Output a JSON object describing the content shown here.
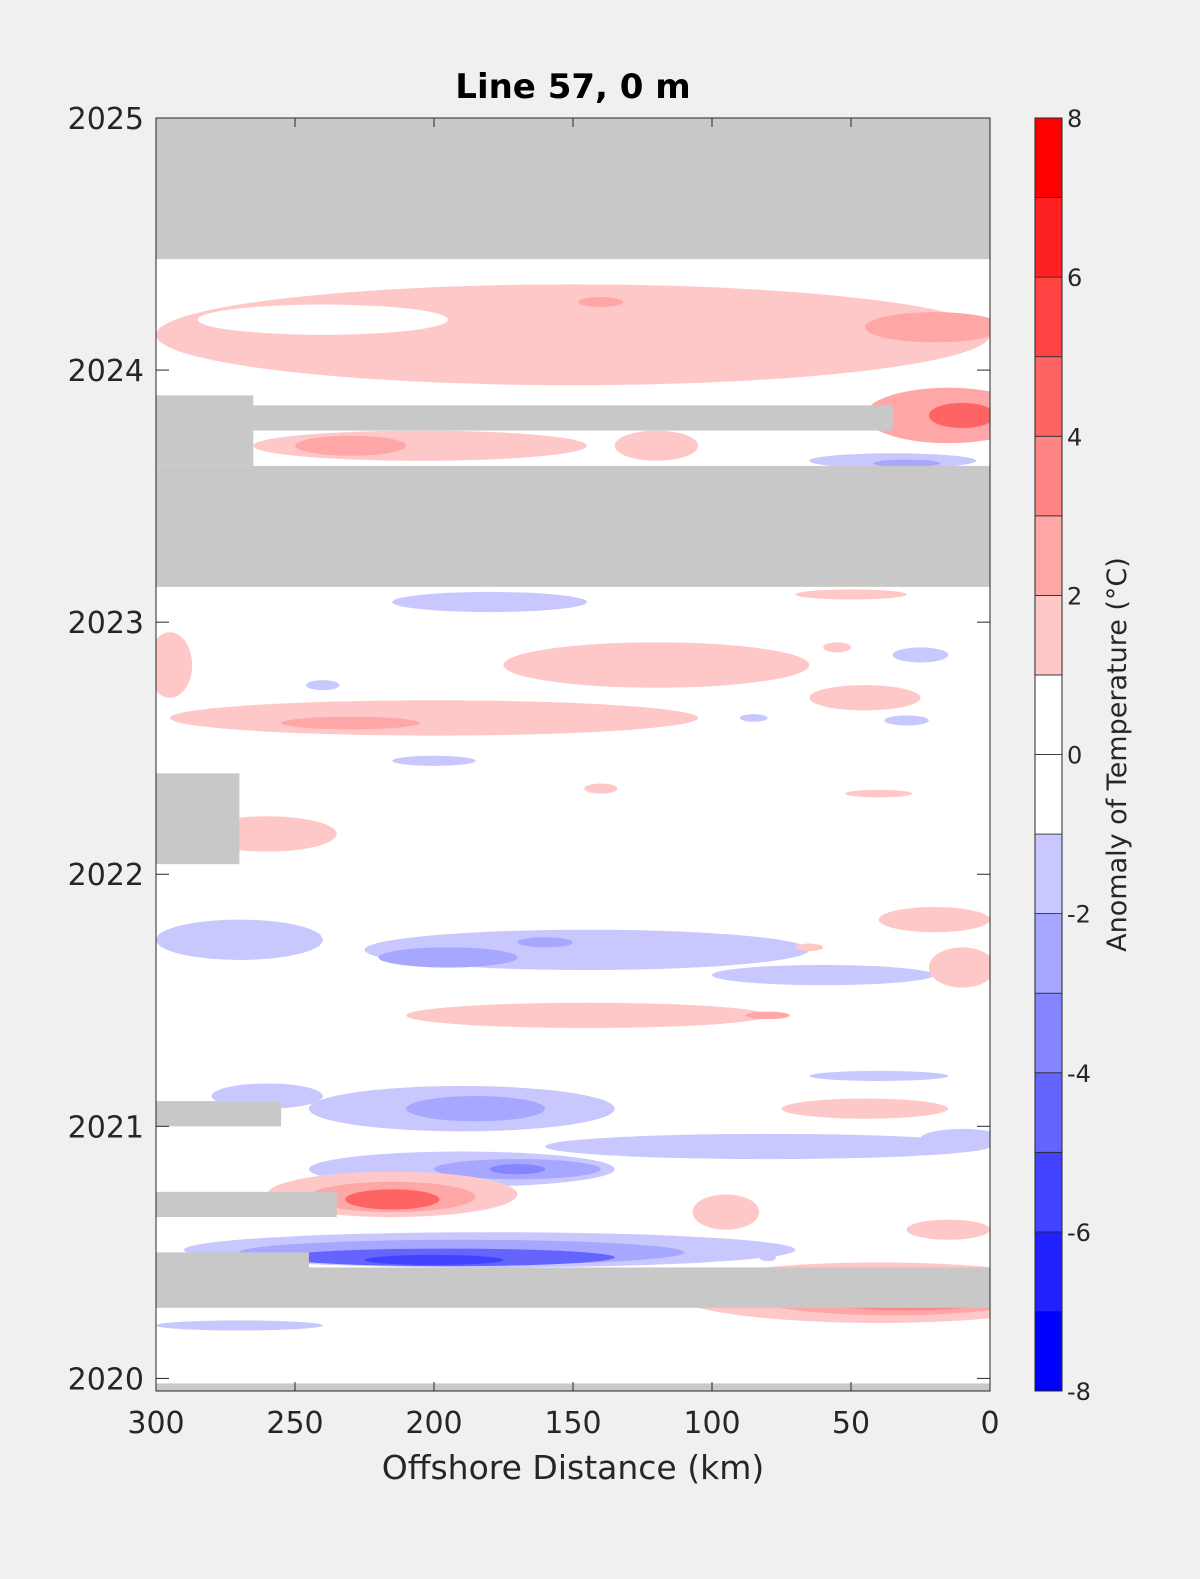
{
  "chart_data": {
    "type": "heatmap",
    "title": "Line 57, 0 m",
    "xlabel": "Offshore Distance (km)",
    "ylabel": "",
    "xlim": [
      300,
      0
    ],
    "ylim": [
      2019.95,
      2025
    ],
    "x_axis_reversed": true,
    "x_ticks": [
      300,
      250,
      200,
      150,
      100,
      50,
      0
    ],
    "y_ticks": [
      2020,
      2021,
      2022,
      2023,
      2024,
      2025
    ],
    "grid": false,
    "colorbar": {
      "label": "Anomaly of Temperature (°C)",
      "range": [
        -8,
        8
      ],
      "step": 1,
      "tick_values": [
        -8,
        -6,
        -4,
        -2,
        0,
        2,
        4,
        6,
        8
      ],
      "tick_labels": [
        "-8",
        "-6",
        "-4",
        "-2",
        "0",
        "2",
        "4",
        "6",
        "8"
      ],
      "negative_color": "#0000ff",
      "positive_color": "#ff0000",
      "neutral_color": "#ffffff"
    },
    "missing_data_color": "#c8c8c8",
    "missing_data": [
      {
        "x": [
          300,
          0
        ],
        "y": [
          2024.44,
          2025.0
        ]
      },
      {
        "x": [
          300,
          0
        ],
        "y": [
          2023.14,
          2023.62
        ]
      },
      {
        "x": [
          300,
          265
        ],
        "y": [
          2023.62,
          2023.9
        ]
      },
      {
        "x": [
          265,
          35
        ],
        "y": [
          2023.76,
          2023.86
        ]
      },
      {
        "x": [
          300,
          0
        ],
        "y": [
          2020.28,
          2020.44
        ]
      },
      {
        "x": [
          300,
          245
        ],
        "y": [
          2020.44,
          2020.5
        ]
      },
      {
        "x": [
          300,
          270
        ],
        "y": [
          2022.04,
          2022.4
        ]
      },
      {
        "x": [
          300,
          255
        ],
        "y": [
          2021.0,
          2021.1
        ]
      },
      {
        "x": [
          300,
          235
        ],
        "y": [
          2020.64,
          2020.74
        ]
      },
      {
        "x": [
          300,
          0
        ],
        "y": [
          2019.95,
          2019.98
        ]
      }
    ],
    "anomaly_regions": [
      {
        "x_center": 150,
        "y_center": 2024.14,
        "x_halfwidth": 150,
        "y_halfwidth": 0.2,
        "value": 1.2
      },
      {
        "x_center": 240,
        "y_center": 2024.2,
        "x_halfwidth": 45,
        "y_halfwidth": 0.06,
        "value": 0
      },
      {
        "x_center": 20,
        "y_center": 2024.17,
        "x_halfwidth": 25,
        "y_halfwidth": 0.06,
        "value": 2.5
      },
      {
        "x_center": 140,
        "y_center": 2024.27,
        "x_halfwidth": 8,
        "y_halfwidth": 0.02,
        "value": 2.5
      },
      {
        "x_center": 15,
        "y_center": 2023.82,
        "x_halfwidth": 30,
        "y_halfwidth": 0.11,
        "value": 2.5
      },
      {
        "x_center": 10,
        "y_center": 2023.82,
        "x_halfwidth": 12,
        "y_halfwidth": 0.05,
        "value": 4.5
      },
      {
        "x_center": 205,
        "y_center": 2023.7,
        "x_halfwidth": 60,
        "y_halfwidth": 0.06,
        "value": 1.2
      },
      {
        "x_center": 230,
        "y_center": 2023.7,
        "x_halfwidth": 20,
        "y_halfwidth": 0.04,
        "value": 2.5
      },
      {
        "x_center": 120,
        "y_center": 2023.7,
        "x_halfwidth": 15,
        "y_halfwidth": 0.06,
        "value": 1.2
      },
      {
        "x_center": 35,
        "y_center": 2023.64,
        "x_halfwidth": 30,
        "y_halfwidth": 0.03,
        "value": -1.2
      },
      {
        "x_center": 30,
        "y_center": 2023.63,
        "x_halfwidth": 12,
        "y_halfwidth": 0.015,
        "value": -2.5
      },
      {
        "x_center": 180,
        "y_center": 2023.08,
        "x_halfwidth": 35,
        "y_halfwidth": 0.04,
        "value": -1.2
      },
      {
        "x_center": 50,
        "y_center": 2023.11,
        "x_halfwidth": 20,
        "y_halfwidth": 0.02,
        "value": 1.2
      },
      {
        "x_center": 200,
        "y_center": 2022.62,
        "x_halfwidth": 95,
        "y_halfwidth": 0.07,
        "value": 1.2
      },
      {
        "x_center": 120,
        "y_center": 2022.83,
        "x_halfwidth": 55,
        "y_halfwidth": 0.09,
        "value": 1.2
      },
      {
        "x_center": 295,
        "y_center": 2022.83,
        "x_halfwidth": 8,
        "y_halfwidth": 0.13,
        "value": 1.2
      },
      {
        "x_center": 230,
        "y_center": 2022.6,
        "x_halfwidth": 25,
        "y_halfwidth": 0.025,
        "value": 2.5
      },
      {
        "x_center": 45,
        "y_center": 2022.7,
        "x_halfwidth": 20,
        "y_halfwidth": 0.05,
        "value": 1.2
      },
      {
        "x_center": 25,
        "y_center": 2022.87,
        "x_halfwidth": 10,
        "y_halfwidth": 0.03,
        "value": -1.2
      },
      {
        "x_center": 30,
        "y_center": 2022.61,
        "x_halfwidth": 8,
        "y_halfwidth": 0.02,
        "value": -1.2
      },
      {
        "x_center": 85,
        "y_center": 2022.62,
        "x_halfwidth": 5,
        "y_halfwidth": 0.015,
        "value": -1.2
      },
      {
        "x_center": 240,
        "y_center": 2022.75,
        "x_halfwidth": 6,
        "y_halfwidth": 0.02,
        "value": -1.2
      },
      {
        "x_center": 200,
        "y_center": 2022.45,
        "x_halfwidth": 15,
        "y_halfwidth": 0.02,
        "value": -1.2
      },
      {
        "x_center": 55,
        "y_center": 2022.9,
        "x_halfwidth": 5,
        "y_halfwidth": 0.02,
        "value": 1.2
      },
      {
        "x_center": 140,
        "y_center": 2022.34,
        "x_halfwidth": 6,
        "y_halfwidth": 0.02,
        "value": 1.2
      },
      {
        "x_center": 260,
        "y_center": 2022.16,
        "x_halfwidth": 25,
        "y_halfwidth": 0.07,
        "value": 1.2
      },
      {
        "x_center": 40,
        "y_center": 2022.32,
        "x_halfwidth": 12,
        "y_halfwidth": 0.015,
        "value": 1.2
      },
      {
        "x_center": 270,
        "y_center": 2021.74,
        "x_halfwidth": 30,
        "y_halfwidth": 0.08,
        "value": -1.2
      },
      {
        "x_center": 145,
        "y_center": 2021.7,
        "x_halfwidth": 80,
        "y_halfwidth": 0.08,
        "value": -1.2
      },
      {
        "x_center": 60,
        "y_center": 2021.6,
        "x_halfwidth": 40,
        "y_halfwidth": 0.04,
        "value": -1.2
      },
      {
        "x_center": 195,
        "y_center": 2021.67,
        "x_halfwidth": 25,
        "y_halfwidth": 0.04,
        "value": -2.5
      },
      {
        "x_center": 160,
        "y_center": 2021.73,
        "x_halfwidth": 10,
        "y_halfwidth": 0.02,
        "value": -2.5
      },
      {
        "x_center": 20,
        "y_center": 2021.82,
        "x_halfwidth": 20,
        "y_halfwidth": 0.05,
        "value": 1.2
      },
      {
        "x_center": 10,
        "y_center": 2021.63,
        "x_halfwidth": 12,
        "y_halfwidth": 0.08,
        "value": 1.2
      },
      {
        "x_center": 145,
        "y_center": 2021.44,
        "x_halfwidth": 65,
        "y_halfwidth": 0.05,
        "value": 1.2
      },
      {
        "x_center": 80,
        "y_center": 2021.44,
        "x_halfwidth": 8,
        "y_halfwidth": 0.015,
        "value": 2.5
      },
      {
        "x_center": 65,
        "y_center": 2021.71,
        "x_halfwidth": 5,
        "y_halfwidth": 0.015,
        "value": 1.2
      },
      {
        "x_center": 260,
        "y_center": 2021.12,
        "x_halfwidth": 20,
        "y_halfwidth": 0.05,
        "value": -1.2
      },
      {
        "x_center": 190,
        "y_center": 2021.07,
        "x_halfwidth": 55,
        "y_halfwidth": 0.09,
        "value": -1.2
      },
      {
        "x_center": 185,
        "y_center": 2021.07,
        "x_halfwidth": 25,
        "y_halfwidth": 0.05,
        "value": -2.5
      },
      {
        "x_center": 40,
        "y_center": 2021.2,
        "x_halfwidth": 25,
        "y_halfwidth": 0.02,
        "value": -1.2
      },
      {
        "x_center": 45,
        "y_center": 2021.07,
        "x_halfwidth": 30,
        "y_halfwidth": 0.04,
        "value": 1.2
      },
      {
        "x_center": 190,
        "y_center": 2020.83,
        "x_halfwidth": 55,
        "y_halfwidth": 0.07,
        "value": -1.2
      },
      {
        "x_center": 170,
        "y_center": 2020.83,
        "x_halfwidth": 30,
        "y_halfwidth": 0.04,
        "value": -2.5
      },
      {
        "x_center": 170,
        "y_center": 2020.83,
        "x_halfwidth": 10,
        "y_halfwidth": 0.02,
        "value": -3.5
      },
      {
        "x_center": 80,
        "y_center": 2020.92,
        "x_halfwidth": 80,
        "y_halfwidth": 0.05,
        "value": -1.2
      },
      {
        "x_center": 10,
        "y_center": 2020.95,
        "x_halfwidth": 15,
        "y_halfwidth": 0.04,
        "value": -1.2
      },
      {
        "x_center": 215,
        "y_center": 2020.73,
        "x_halfwidth": 45,
        "y_halfwidth": 0.09,
        "value": 1.2
      },
      {
        "x_center": 215,
        "y_center": 2020.72,
        "x_halfwidth": 30,
        "y_halfwidth": 0.06,
        "value": 2.5
      },
      {
        "x_center": 215,
        "y_center": 2020.71,
        "x_halfwidth": 17,
        "y_halfwidth": 0.04,
        "value": 4.5
      },
      {
        "x_center": 95,
        "y_center": 2020.66,
        "x_halfwidth": 12,
        "y_halfwidth": 0.07,
        "value": 1.2
      },
      {
        "x_center": 15,
        "y_center": 2020.59,
        "x_halfwidth": 15,
        "y_halfwidth": 0.04,
        "value": 1.2
      },
      {
        "x_center": 180,
        "y_center": 2020.51,
        "x_halfwidth": 110,
        "y_halfwidth": 0.07,
        "value": -1.2
      },
      {
        "x_center": 190,
        "y_center": 2020.5,
        "x_halfwidth": 80,
        "y_halfwidth": 0.05,
        "value": -2.5
      },
      {
        "x_center": 195,
        "y_center": 2020.48,
        "x_halfwidth": 60,
        "y_halfwidth": 0.035,
        "value": -4.5
      },
      {
        "x_center": 200,
        "y_center": 2020.47,
        "x_halfwidth": 25,
        "y_halfwidth": 0.02,
        "value": -5.5
      },
      {
        "x_center": 80,
        "y_center": 2020.48,
        "x_halfwidth": 3,
        "y_halfwidth": 0.015,
        "value": -1.2
      },
      {
        "x_center": 40,
        "y_center": 2020.34,
        "x_halfwidth": 75,
        "y_halfwidth": 0.12,
        "value": 1.2
      },
      {
        "x_center": 35,
        "y_center": 2020.34,
        "x_halfwidth": 55,
        "y_halfwidth": 0.09,
        "value": 2.5
      },
      {
        "x_center": 30,
        "y_center": 2020.34,
        "x_halfwidth": 42,
        "y_halfwidth": 0.07,
        "value": 3.5
      },
      {
        "x_center": 28,
        "y_center": 2020.34,
        "x_halfwidth": 33,
        "y_halfwidth": 0.055,
        "value": 4.5
      },
      {
        "x_center": 27,
        "y_center": 2020.34,
        "x_halfwidth": 25,
        "y_halfwidth": 0.04,
        "value": 5.5
      },
      {
        "x_center": 27,
        "y_center": 2020.34,
        "x_halfwidth": 18,
        "y_halfwidth": 0.03,
        "value": 6.5
      },
      {
        "x_center": 270,
        "y_center": 2020.21,
        "x_halfwidth": 30,
        "y_halfwidth": 0.02,
        "value": -1.2
      }
    ]
  }
}
